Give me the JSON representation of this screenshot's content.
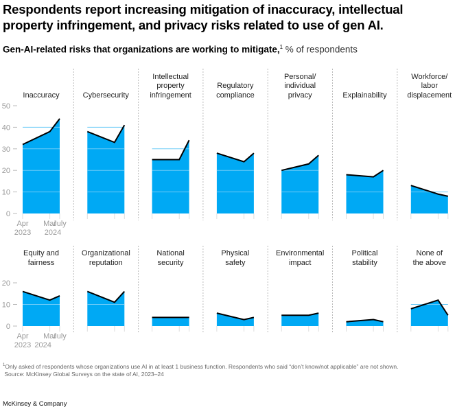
{
  "title": "Respondents report increasing mitigation of inaccuracy, intellectual property infringement, and privacy risks related to use of gen AI.",
  "subtitle": "Gen-AI-related risks that organizations are working to mitigate,",
  "subtitle_footnote_marker": "1",
  "subtitle_unit": " % of respondents",
  "footnote": "Only asked of respondents whose organizations use AI in at least 1 business function. Respondents who said “don’t know/not applicable” are not shown.",
  "footnote_marker": "1",
  "source": "Source: McKinsey Global Surveys on the state of AI, 2023–24",
  "logo": "McKinsey & Company",
  "colors": {
    "fill": "#00A9F4",
    "line": "#000000",
    "grid": "#6CCBF7",
    "axis": "#999999"
  },
  "chart_data": [
    {
      "type": "area",
      "x": [
        "Apr 2023",
        "Mar 2024",
        "July 2024"
      ],
      "x_tick_labels": [
        [
          "Apr",
          "2023"
        ],
        [
          "Mar",
          ""
        ],
        [
          "July",
          "2024"
        ]
      ],
      "ylim": [
        0,
        50
      ],
      "y_ticks": [
        "0",
        "10",
        "20",
        "30",
        "40",
        "50"
      ],
      "grid": true,
      "series": [
        {
          "name": "Inaccuracy",
          "values": [
            32,
            38,
            44
          ]
        },
        {
          "name": "Cybersecurity",
          "values": [
            38,
            33,
            41
          ]
        },
        {
          "name": "Intellectual\nproperty\ninfringement",
          "values": [
            25,
            25,
            34
          ]
        },
        {
          "name": "Regulatory\ncompliance",
          "values": [
            28,
            24,
            28
          ]
        },
        {
          "name": "Personal/\nindividual\nprivacy",
          "values": [
            20,
            23,
            27
          ]
        },
        {
          "name": "Explainability",
          "values": [
            18,
            17,
            20
          ]
        },
        {
          "name": "Workforce/\nlabor\ndisplacement",
          "values": [
            13,
            9,
            8
          ]
        }
      ]
    },
    {
      "type": "area",
      "x": [
        "Apr 2023",
        "Mar 2024",
        "July 2024"
      ],
      "x_tick_labels": [
        [
          "Apr",
          "2023"
        ],
        [
          "Mar",
          "2024"
        ],
        [
          "July",
          ""
        ]
      ],
      "ylim": [
        0,
        20
      ],
      "y_ticks": [
        "0",
        "10",
        "20"
      ],
      "grid": true,
      "series": [
        {
          "name": "Equity and\nfairness",
          "values": [
            16,
            12,
            14
          ]
        },
        {
          "name": "Organizational\nreputation",
          "values": [
            16,
            11,
            16
          ]
        },
        {
          "name": "National\nsecurity",
          "values": [
            4,
            4,
            4
          ]
        },
        {
          "name": "Physical\nsafety",
          "values": [
            6,
            3,
            4
          ]
        },
        {
          "name": "Environmental\nimpact",
          "values": [
            5,
            5,
            6
          ]
        },
        {
          "name": "Political\nstability",
          "values": [
            2,
            3,
            2
          ]
        },
        {
          "name": "None of\nthe above",
          "values": [
            8,
            12,
            5
          ]
        }
      ]
    }
  ]
}
